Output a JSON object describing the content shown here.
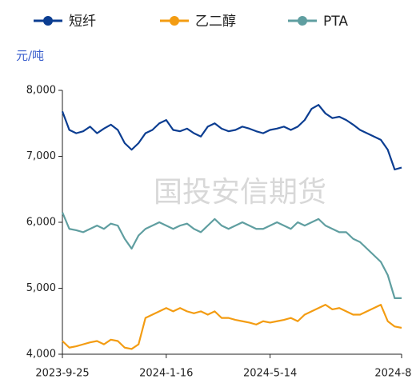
{
  "chart_data": {
    "type": "line",
    "y_label": "元/吨",
    "watermark": "国投安信期货",
    "categories": [
      "2023-9-25",
      null,
      null,
      null,
      null,
      null,
      null,
      null,
      null,
      null,
      null,
      null,
      null,
      null,
      null,
      "2024-1-16",
      null,
      null,
      null,
      null,
      null,
      null,
      null,
      null,
      null,
      null,
      null,
      null,
      null,
      null,
      "2024-5-14",
      null,
      null,
      null,
      null,
      null,
      null,
      null,
      null,
      null,
      null,
      null,
      null,
      null,
      null,
      null,
      null,
      null,
      null,
      "2024-8-27"
    ],
    "ylim": [
      4000,
      8000
    ],
    "yticks": [
      {
        "value": 4000,
        "label": "4,000"
      },
      {
        "value": 5000,
        "label": "5,000"
      },
      {
        "value": 6000,
        "label": "6,000"
      },
      {
        "value": 7000,
        "label": "7,000"
      },
      {
        "value": 8000,
        "label": "8,000"
      }
    ],
    "grid": false,
    "legend": "top",
    "series": [
      {
        "name": "短纤",
        "color": "#0b3d91",
        "values": [
          7680,
          7400,
          7350,
          7380,
          7450,
          7350,
          7420,
          7480,
          7400,
          7200,
          7100,
          7200,
          7350,
          7400,
          7500,
          7550,
          7400,
          7380,
          7420,
          7350,
          7300,
          7450,
          7500,
          7420,
          7380,
          7400,
          7450,
          7420,
          7380,
          7350,
          7400,
          7420,
          7450,
          7400,
          7450,
          7550,
          7720,
          7780,
          7650,
          7580,
          7600,
          7550,
          7480,
          7400,
          7350,
          7300,
          7250,
          7100,
          6800,
          6830
        ]
      },
      {
        "name": "乙二醇",
        "color": "#f39c12",
        "values": [
          4200,
          4100,
          4120,
          4150,
          4180,
          4200,
          4150,
          4220,
          4200,
          4100,
          4080,
          4150,
          4550,
          4600,
          4650,
          4700,
          4650,
          4700,
          4650,
          4620,
          4650,
          4600,
          4650,
          4550,
          4550,
          4520,
          4500,
          4480,
          4450,
          4500,
          4480,
          4500,
          4520,
          4550,
          4500,
          4600,
          4650,
          4700,
          4750,
          4680,
          4700,
          4650,
          4600,
          4600,
          4650,
          4700,
          4750,
          4500,
          4420,
          4400
        ]
      },
      {
        "name": "PTA",
        "color": "#5f9ea0",
        "values": [
          6150,
          5900,
          5880,
          5850,
          5900,
          5950,
          5900,
          5980,
          5950,
          5750,
          5600,
          5800,
          5900,
          5950,
          6000,
          5950,
          5900,
          5950,
          5980,
          5900,
          5850,
          5950,
          6050,
          5950,
          5900,
          5950,
          6000,
          5950,
          5900,
          5900,
          5950,
          6000,
          5950,
          5900,
          6000,
          5950,
          6000,
          6050,
          5950,
          5900,
          5850,
          5850,
          5750,
          5700,
          5600,
          5500,
          5400,
          5200,
          4850,
          4850
        ]
      }
    ]
  }
}
